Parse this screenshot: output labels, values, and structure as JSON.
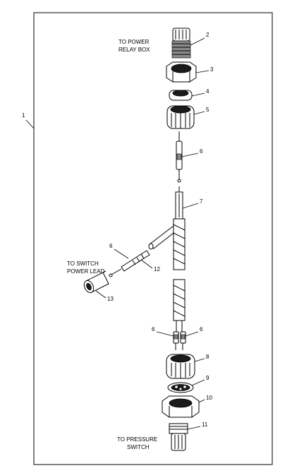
{
  "figure": {
    "callouts": {
      "c1": "1",
      "c2": "2",
      "c3": "3",
      "c4": "4",
      "c5": "5",
      "c6_top": "6",
      "c7": "7",
      "c6_left": "6",
      "c12": "12",
      "c13": "13",
      "c6_bl": "6",
      "c6_br": "6",
      "c8": "8",
      "c9": "9",
      "c10": "10",
      "c11": "11"
    },
    "labels": {
      "power_relay_1": "TO POWER",
      "power_relay_2": "RELAY BOX",
      "switch_power_1": "TO SWITCH",
      "switch_power_2": "POWER LEAD",
      "pressure_1": "TO PRESSURE",
      "pressure_2": "SWITCH"
    }
  }
}
